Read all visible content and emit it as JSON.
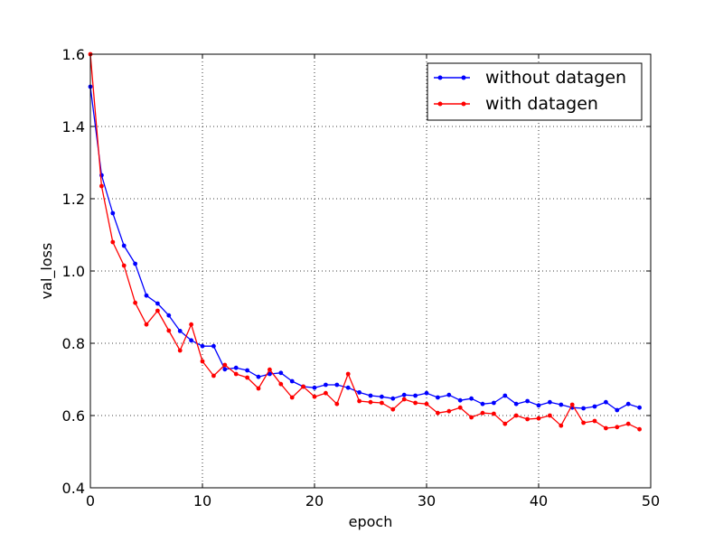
{
  "chart_data": {
    "type": "line",
    "title": "",
    "xlabel": "epoch",
    "ylabel": "val_loss",
    "xlim": [
      0,
      50
    ],
    "ylim": [
      0.4,
      1.6
    ],
    "xticks": [
      0,
      10,
      20,
      30,
      40,
      50
    ],
    "yticks": [
      0.4,
      0.6,
      0.8,
      1.0,
      1.2,
      1.4,
      1.6
    ],
    "xtick_labels": [
      "0",
      "10",
      "20",
      "30",
      "40",
      "50"
    ],
    "ytick_labels": [
      "0.4",
      "0.6",
      "0.8",
      "1.0",
      "1.2",
      "1.4",
      "1.6"
    ],
    "grid": true,
    "legend_position": "top-right",
    "x": [
      0,
      1,
      2,
      3,
      4,
      5,
      6,
      7,
      8,
      9,
      10,
      11,
      12,
      13,
      14,
      15,
      16,
      17,
      18,
      19,
      20,
      21,
      22,
      23,
      24,
      25,
      26,
      27,
      28,
      29,
      30,
      31,
      32,
      33,
      34,
      35,
      36,
      37,
      38,
      39,
      40,
      41,
      42,
      43,
      44,
      45,
      46,
      47,
      48,
      49
    ],
    "series": [
      {
        "name": "without datagen",
        "color": "#0000ff",
        "values": [
          1.51,
          1.265,
          1.16,
          1.07,
          1.02,
          0.932,
          0.91,
          0.877,
          0.834,
          0.808,
          0.792,
          0.792,
          0.728,
          0.732,
          0.725,
          0.707,
          0.715,
          0.718,
          0.695,
          0.68,
          0.677,
          0.685,
          0.685,
          0.677,
          0.664,
          0.655,
          0.652,
          0.647,
          0.657,
          0.655,
          0.662,
          0.65,
          0.657,
          0.642,
          0.647,
          0.632,
          0.635,
          0.655,
          0.632,
          0.64,
          0.628,
          0.637,
          0.63,
          0.622,
          0.62,
          0.625,
          0.637,
          0.615,
          0.632,
          0.622
        ]
      },
      {
        "name": "with datagen",
        "color": "#ff0000",
        "values": [
          1.6,
          1.235,
          1.08,
          1.015,
          0.912,
          0.852,
          0.89,
          0.835,
          0.78,
          0.852,
          0.75,
          0.71,
          0.74,
          0.715,
          0.705,
          0.675,
          0.727,
          0.687,
          0.65,
          0.68,
          0.652,
          0.662,
          0.632,
          0.715,
          0.64,
          0.637,
          0.635,
          0.617,
          0.645,
          0.635,
          0.632,
          0.607,
          0.612,
          0.622,
          0.595,
          0.607,
          0.605,
          0.577,
          0.6,
          0.59,
          0.592,
          0.6,
          0.572,
          0.63,
          0.58,
          0.585,
          0.565,
          0.568,
          0.577,
          0.562
        ]
      }
    ]
  }
}
